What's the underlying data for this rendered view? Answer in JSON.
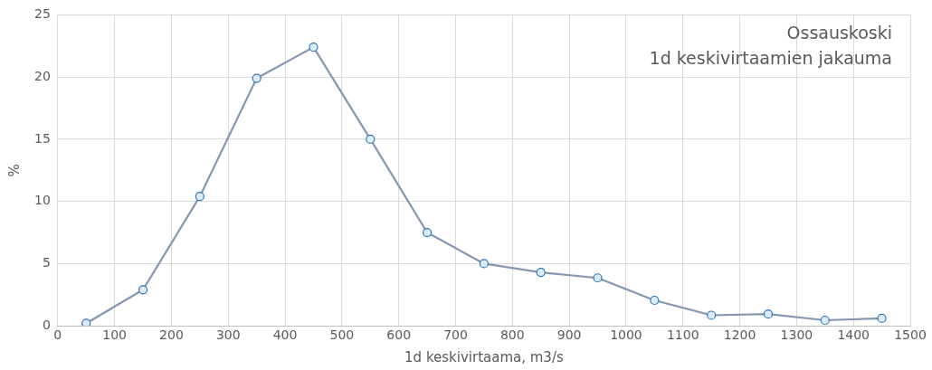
{
  "chart_data": {
    "type": "line",
    "title": "Ossauskoski",
    "subtitle": "1d keskivirtaamien jakauma",
    "xlabel": "1d keskivirtaama, m3/s",
    "ylabel": "%",
    "x": [
      50,
      150,
      250,
      350,
      450,
      550,
      650,
      750,
      850,
      950,
      1050,
      1150,
      1250,
      1350,
      1450
    ],
    "series": [
      {
        "color": "#8497b0",
        "values": [
          0.2,
          2.9,
          10.4,
          19.9,
          22.4,
          15.0,
          7.5,
          5.0,
          4.3,
          3.85,
          2.05,
          0.85,
          0.95,
          0.45,
          0.6
        ]
      }
    ],
    "xlim": [
      0,
      1500
    ],
    "xticks": [
      0,
      100,
      200,
      300,
      400,
      500,
      600,
      700,
      800,
      900,
      1000,
      1100,
      1200,
      1300,
      1400,
      1500
    ],
    "ylim": [
      0,
      25
    ],
    "yticks": [
      0,
      5,
      10,
      15,
      20,
      25
    ],
    "grid": true,
    "legend": false,
    "marker": "circle",
    "line_style": "solid"
  }
}
